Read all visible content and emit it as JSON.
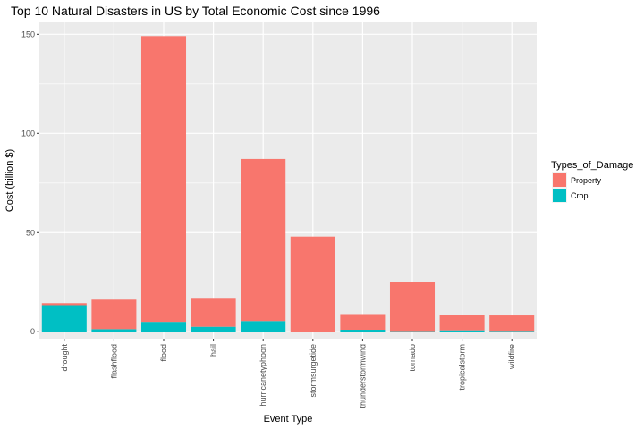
{
  "chart_data": {
    "type": "bar",
    "stacked": true,
    "title": "Top 10 Natural Disasters in US by Total Economic Cost since 1996",
    "xlabel": "Event Type",
    "ylabel": "Cost (billion $)",
    "ylim": [
      -3.5,
      156
    ],
    "yticks": [
      0,
      50,
      100,
      150
    ],
    "grid": true,
    "legend_title": "Types_of_Damage",
    "legend_position": "right",
    "categories": [
      "drought",
      "flashflood",
      "flood",
      "hail",
      "hurricanetyphoon",
      "stormsurgetide",
      "thunderstormwind",
      "tornado",
      "tropicalstorm",
      "wildfire"
    ],
    "series": [
      {
        "name": "Crop",
        "color": "#00BFC4",
        "values": [
          13.4,
          1.3,
          5.0,
          2.5,
          5.4,
          0.0,
          1.0,
          0.3,
          0.7,
          0.4
        ]
      },
      {
        "name": "Property",
        "color": "#F8766D",
        "values": [
          1.0,
          14.9,
          144.1,
          14.6,
          81.7,
          48.0,
          7.9,
          24.6,
          7.6,
          7.8
        ]
      }
    ],
    "legend_order": [
      "Property",
      "Crop"
    ]
  }
}
